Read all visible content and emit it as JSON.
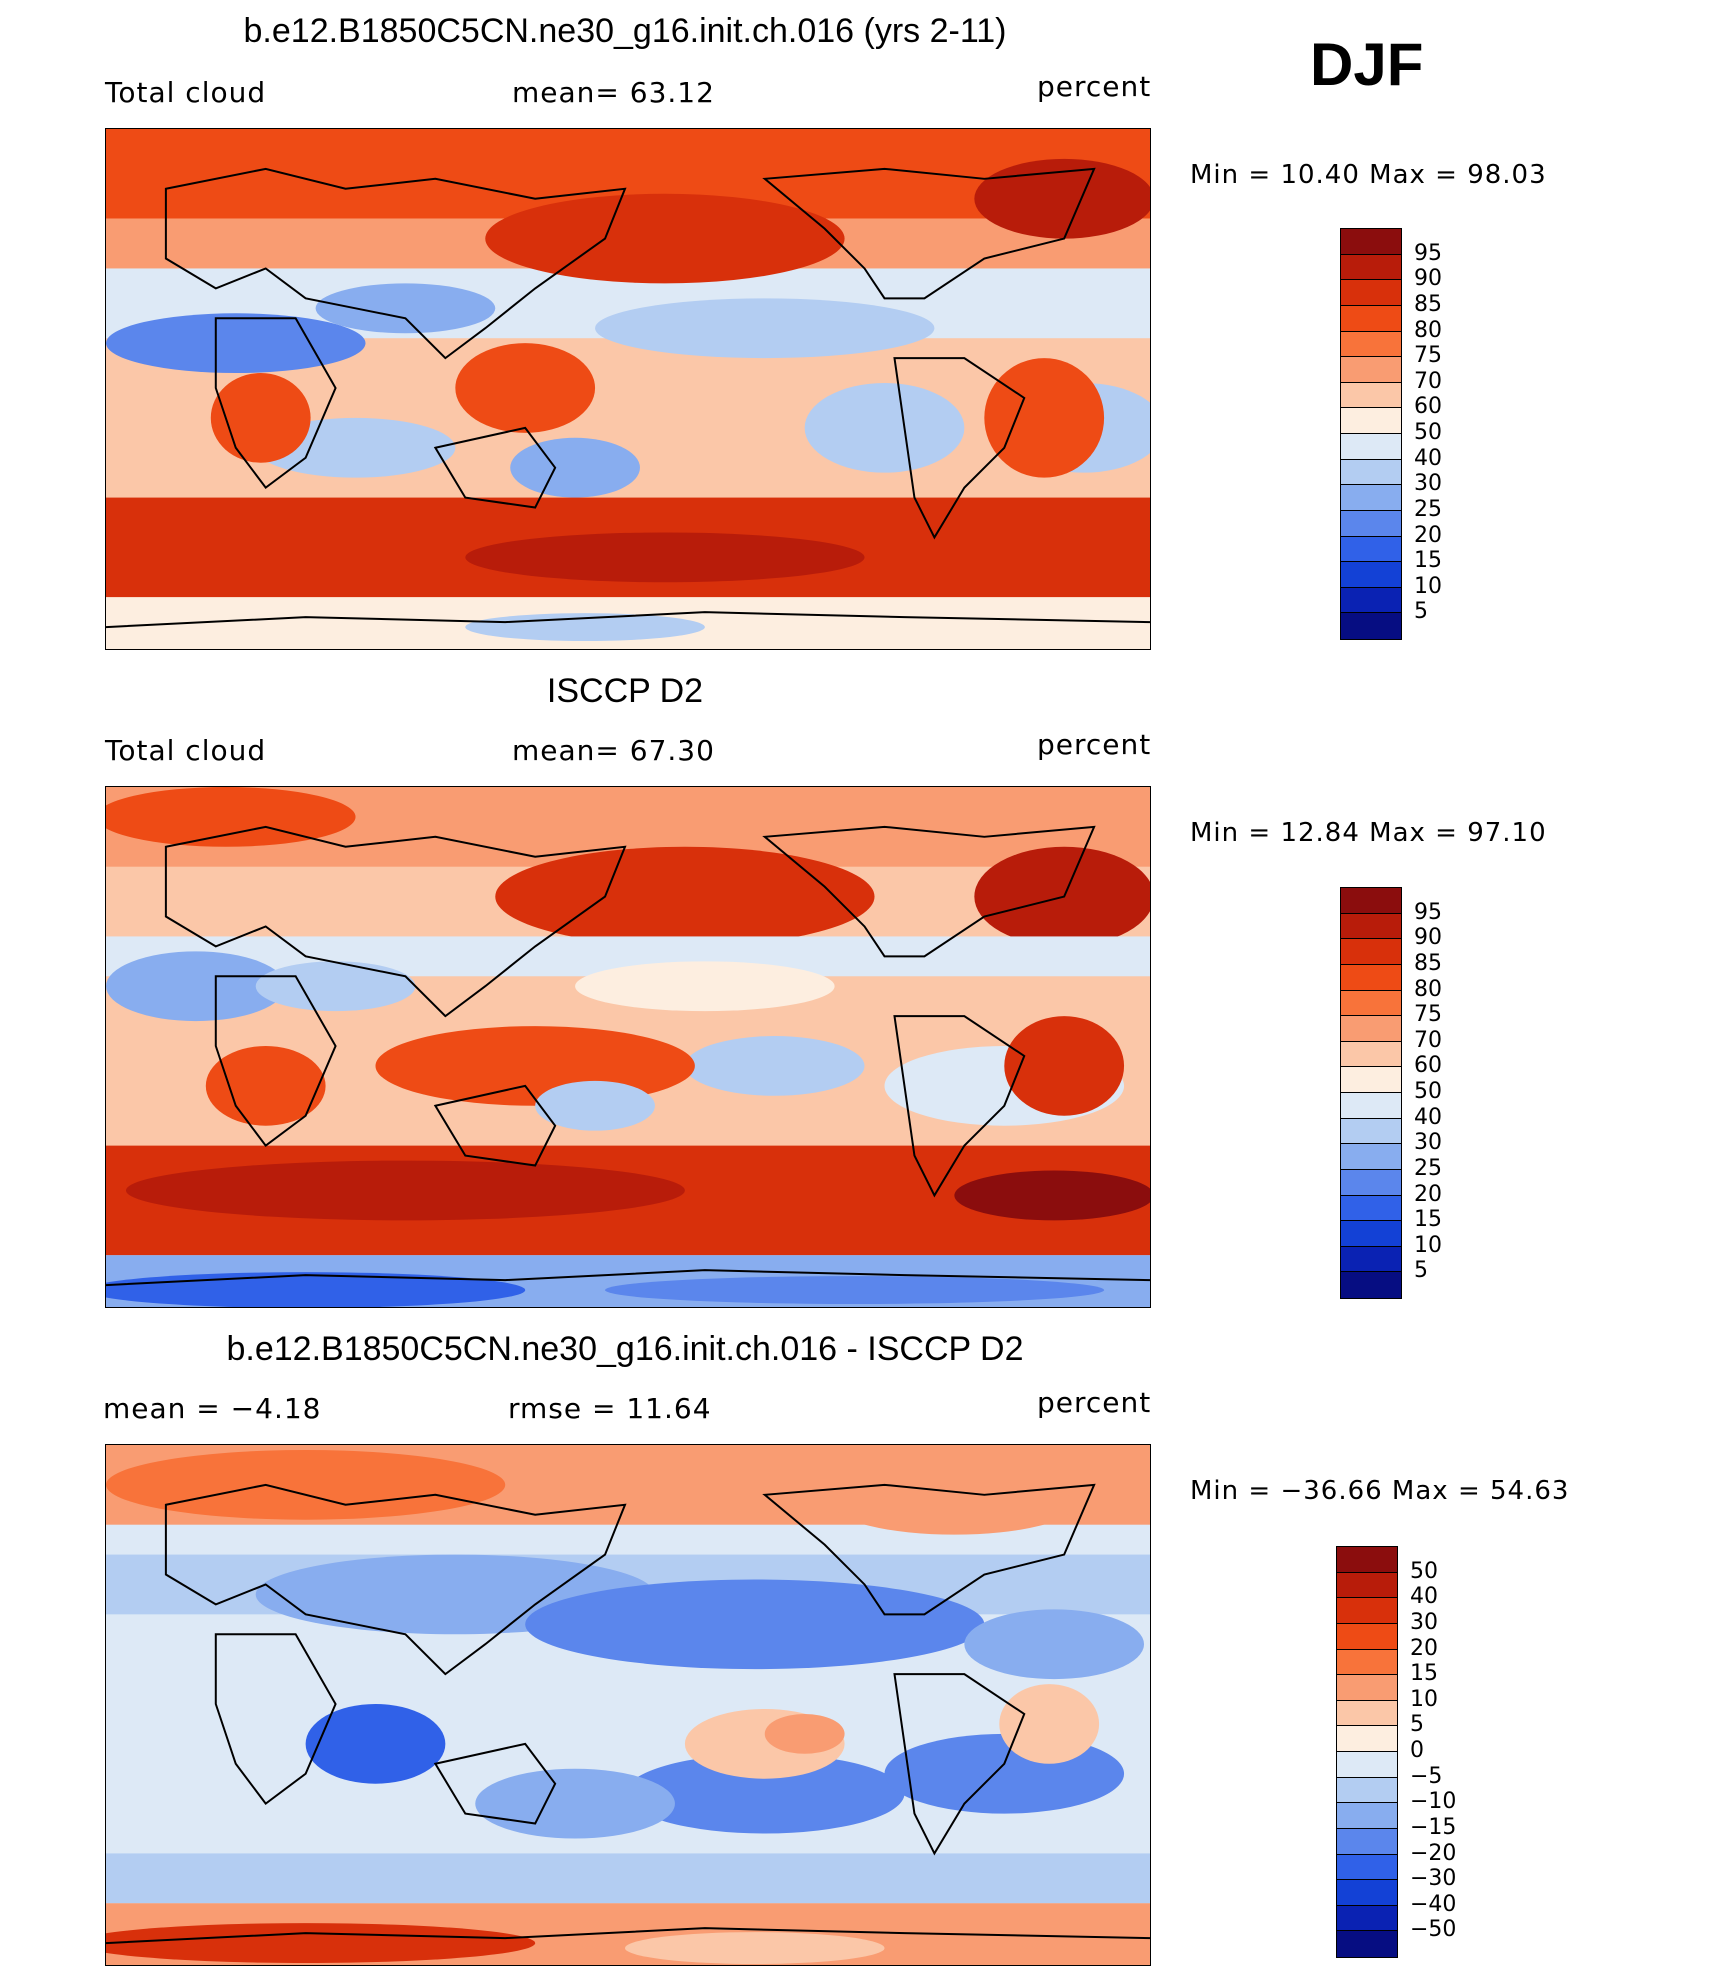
{
  "season": "DJF",
  "panels": [
    {
      "title": "b.e12.B1850C5CN.ne30_g16.init.ch.016 (yrs 2-11)",
      "left_label": "Total cloud",
      "center_label": "mean=   63.12",
      "right_label": "percent",
      "minmax": "Min =   10.40 Max =   98.03",
      "colorbar": {
        "labels": [
          "95",
          "90",
          "85",
          "80",
          "75",
          "70",
          "60",
          "50",
          "40",
          "30",
          "25",
          "20",
          "15",
          "10",
          "5"
        ],
        "colors": [
          "#8b0d0d",
          "#b81c0a",
          "#d8300b",
          "#ee4b15",
          "#f8733a",
          "#f99c72",
          "#fbc7a8",
          "#fdeee0",
          "#dde9f6",
          "#b3cdf2",
          "#88adef",
          "#5b86ec",
          "#3061e8",
          "#1341d6",
          "#0a22b3",
          "#060d82"
        ]
      }
    },
    {
      "title": "ISCCP D2",
      "left_label": "Total cloud",
      "center_label": "mean=   67.30",
      "right_label": "percent",
      "minmax": "Min =   12.84 Max =   97.10",
      "colorbar": {
        "labels": [
          "95",
          "90",
          "85",
          "80",
          "75",
          "70",
          "60",
          "50",
          "40",
          "30",
          "25",
          "20",
          "15",
          "10",
          "5"
        ],
        "colors": [
          "#8b0d0d",
          "#b81c0a",
          "#d8300b",
          "#ee4b15",
          "#f8733a",
          "#f99c72",
          "#fbc7a8",
          "#fdeee0",
          "#dde9f6",
          "#b3cdf2",
          "#88adef",
          "#5b86ec",
          "#3061e8",
          "#1341d6",
          "#0a22b3",
          "#060d82"
        ]
      }
    },
    {
      "title": "b.e12.B1850C5CN.ne30_g16.init.ch.016 - ISCCP D2",
      "left_label": "mean =   −4.18",
      "center_label": "rmse =   11.64",
      "right_label": "percent",
      "minmax": "Min = −36.66 Max =   54.63",
      "colorbar": {
        "labels": [
          "50",
          "40",
          "30",
          "20",
          "15",
          "10",
          "5",
          "0",
          "−5",
          "−10",
          "−15",
          "−20",
          "−30",
          "−40",
          "−50"
        ],
        "colors": [
          "#8b0d0d",
          "#b81c0a",
          "#d8300b",
          "#ee4b15",
          "#f8733a",
          "#f99c72",
          "#fbc7a8",
          "#fdeee0",
          "#dde9f6",
          "#b3cdf2",
          "#88adef",
          "#5b86ec",
          "#3061e8",
          "#1341d6",
          "#0a22b3",
          "#060d82"
        ]
      }
    }
  ]
}
